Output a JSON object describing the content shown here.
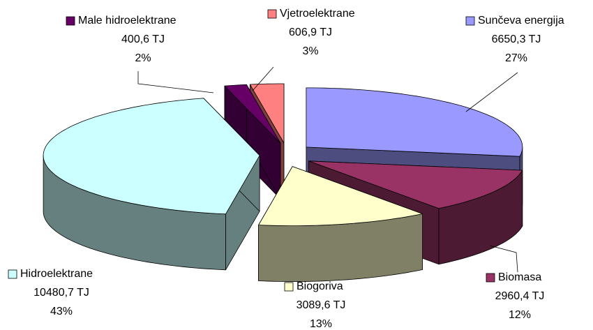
{
  "chart_data": {
    "type": "pie",
    "categories": [
      "Sunčeva energija",
      "Biomasa",
      "Biogoriva",
      "Hidroelektrane",
      "Male hidroelektrane",
      "Vjetroelektrane"
    ],
    "values": [
      6650.3,
      2960.4,
      3089.6,
      10480.7,
      400.6,
      606.9
    ],
    "value_labels": [
      "6650,3 TJ",
      "2960,4 TJ",
      "3089,6 TJ",
      "10480,7 TJ",
      "400,6 TJ",
      "606,9 TJ"
    ],
    "percentages": [
      27,
      12,
      13,
      43,
      2,
      3
    ],
    "percent_labels": [
      "27%",
      "12%",
      "13%",
      "43%",
      "2%",
      "3%"
    ],
    "colors": [
      "#9999ff",
      "#993366",
      "#ffffcc",
      "#ccffff",
      "#660066",
      "#ff8080"
    ],
    "side_colors": [
      "#4d4d80",
      "#4d1a33",
      "#808066",
      "#668080",
      "#330033",
      "#804040"
    ]
  }
}
